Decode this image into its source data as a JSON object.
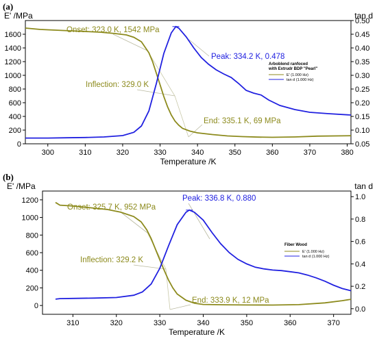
{
  "chart_data": [
    {
      "type": "line",
      "panel_label": "(a)",
      "y_left_label": "E' /MPa",
      "y_right_label": "tan d",
      "xlabel": "Temperature /K",
      "xlim": [
        294,
        381
      ],
      "ylim_left": [
        0,
        1800
      ],
      "ylim_right": [
        0.05,
        0.5
      ],
      "x_ticks": [
        300,
        310,
        320,
        330,
        340,
        350,
        360,
        370,
        380
      ],
      "y_left_ticks": [
        0,
        200,
        400,
        600,
        800,
        1000,
        1200,
        1400,
        1600
      ],
      "y_right_ticks": [
        0.05,
        0.1,
        0.15,
        0.2,
        0.25,
        0.3,
        0.35,
        0.4,
        0.45,
        0.5
      ],
      "y_right_tick_labels": [
        "0.05",
        "0.10",
        "0.15",
        "0.20",
        "0.25",
        "0.30",
        "0.35",
        "0.40",
        "0.45",
        "0.50"
      ],
      "legend": {
        "title": "Arboblend ranfoced with Extrudr BDP \"Pearl\"",
        "entries": [
          "E' (1.000 Hz)",
          "tan d (1.000 Hz)"
        ]
      },
      "series": [
        {
          "name": "E' (1.000 Hz)",
          "axis": "left",
          "color": "#8c8a1c",
          "x": [
            294,
            298,
            302,
            306,
            310,
            314,
            318,
            321,
            323,
            325,
            327,
            328,
            329,
            330,
            331,
            332,
            333,
            334,
            335,
            336,
            338,
            340,
            344,
            348,
            352,
            356,
            360,
            366,
            372,
            381
          ],
          "y": [
            1690,
            1670,
            1660,
            1650,
            1640,
            1630,
            1610,
            1590,
            1555,
            1490,
            1330,
            1200,
            1030,
            860,
            690,
            540,
            420,
            330,
            270,
            225,
            185,
            160,
            135,
            115,
            105,
            98,
            95,
            100,
            112,
            118
          ]
        },
        {
          "name": "tan d (1.000 Hz)",
          "axis": "right",
          "color": "#2020e0",
          "x": [
            294,
            300,
            305,
            310,
            315,
            320,
            323,
            325,
            327,
            329,
            331,
            333,
            334.2,
            335,
            337,
            339,
            341,
            343,
            345,
            347,
            349,
            351,
            353,
            355,
            357,
            359,
            362,
            366,
            370,
            375,
            381
          ],
          "y": [
            0.071,
            0.071,
            0.072,
            0.073,
            0.075,
            0.08,
            0.092,
            0.115,
            0.17,
            0.27,
            0.38,
            0.455,
            0.478,
            0.472,
            0.44,
            0.4,
            0.365,
            0.34,
            0.32,
            0.305,
            0.292,
            0.27,
            0.245,
            0.235,
            0.228,
            0.21,
            0.19,
            0.175,
            0.165,
            0.16,
            0.155
          ]
        }
      ],
      "annotations": [
        {
          "text": "Onset: 323.0 K, 1542 MPa",
          "x": 323.0,
          "y": 1542,
          "axis": "left"
        },
        {
          "text": "Inflection: 329.0 K",
          "x": 329.0,
          "y": 1030,
          "axis": "left"
        },
        {
          "text": "End: 335.1 K, 69 MPa",
          "x": 335.1,
          "y": 69,
          "axis": "left"
        },
        {
          "text": "Peak: 334.2 K, 0.478",
          "x": 334.2,
          "y": 0.478,
          "axis": "right"
        }
      ]
    },
    {
      "type": "line",
      "panel_label": "(b)",
      "y_left_label": "E' /MPa",
      "y_right_label": "tan d",
      "xlabel": "Temperature /K",
      "xlim": [
        303,
        374
      ],
      "ylim_left": [
        -100,
        1300
      ],
      "ylim_right": [
        -0.05,
        1.05
      ],
      "x_ticks": [
        310,
        320,
        330,
        340,
        350,
        360,
        370
      ],
      "y_left_ticks": [
        0,
        200,
        400,
        600,
        800,
        1000,
        1200
      ],
      "y_right_ticks": [
        0.0,
        0.2,
        0.4,
        0.6,
        0.8,
        1.0
      ],
      "y_right_tick_labels": [
        "0.0",
        "0.2",
        "0.4",
        "0.6",
        "0.8",
        "1.0"
      ],
      "legend": {
        "title": "Fiber Wood",
        "entries": [
          "E' (1.000 Hz)",
          "tan d (1.000 Hz)"
        ]
      },
      "series": [
        {
          "name": "E' (1.000 Hz)",
          "axis": "left",
          "color": "#8c8a1c",
          "x": [
            306,
            307,
            310,
            314,
            318,
            321,
            324,
            325.7,
            327,
            328,
            329,
            330,
            331,
            332,
            333,
            334,
            336,
            338,
            340,
            345,
            350,
            356,
            362,
            368,
            372,
            374
          ],
          "y": [
            1170,
            1140,
            1130,
            1110,
            1090,
            1060,
            1010,
            950,
            860,
            760,
            640,
            520,
            400,
            290,
            200,
            130,
            60,
            25,
            12,
            8,
            6,
            5,
            10,
            30,
            55,
            70
          ]
        },
        {
          "name": "tan d (1.000 Hz)",
          "axis": "right",
          "color": "#2020e0",
          "x": [
            306,
            307,
            310,
            315,
            320,
            324,
            326,
            328,
            330,
            332,
            334,
            336,
            336.8,
            338,
            340,
            342,
            344,
            346,
            348,
            350,
            352,
            354,
            356,
            358,
            360,
            362,
            364,
            366,
            368,
            370,
            372,
            374
          ],
          "y": [
            0.085,
            0.09,
            0.092,
            0.095,
            0.1,
            0.12,
            0.15,
            0.22,
            0.36,
            0.56,
            0.75,
            0.86,
            0.88,
            0.86,
            0.79,
            0.68,
            0.58,
            0.5,
            0.44,
            0.4,
            0.37,
            0.355,
            0.345,
            0.34,
            0.33,
            0.32,
            0.3,
            0.275,
            0.245,
            0.21,
            0.18,
            0.16
          ]
        }
      ],
      "annotations": [
        {
          "text": "Onset: 325.7 K, 952 MPa",
          "x": 325.7,
          "y": 952,
          "axis": "left"
        },
        {
          "text": "Inflection: 329.2 K",
          "x": 329.2,
          "y": 580,
          "axis": "left"
        },
        {
          "text": "End: 333.9 K, 12 MPa",
          "x": 333.9,
          "y": 12,
          "axis": "left"
        },
        {
          "text": "Peak: 336.8 K, 0.880",
          "x": 336.8,
          "y": 0.88,
          "axis": "right"
        }
      ]
    }
  ]
}
